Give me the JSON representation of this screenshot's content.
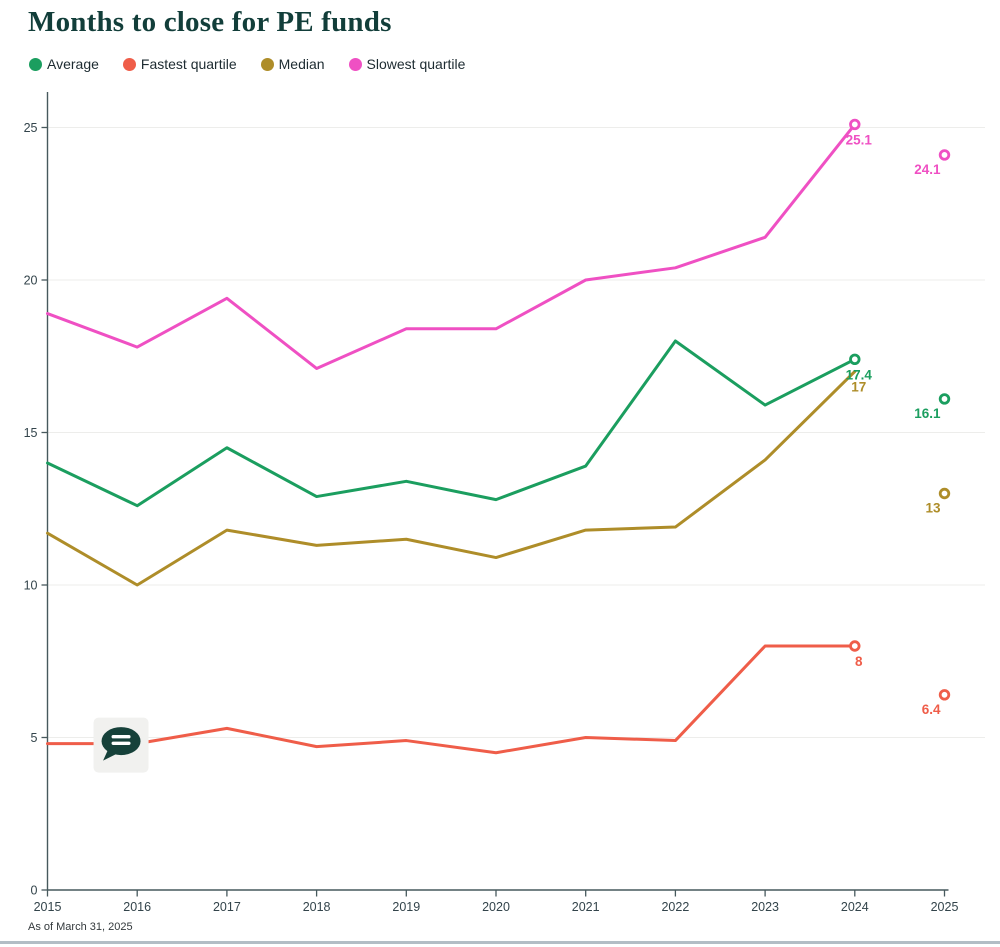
{
  "title": "Months to close for PE funds",
  "legend": [
    {
      "label": "Average",
      "color": "#1b9e5f"
    },
    {
      "label": "Fastest quartile",
      "color": "#ef5d49"
    },
    {
      "label": "Median",
      "color": "#ae8d29"
    },
    {
      "label": "Slowest quartile",
      "color": "#ef50c3"
    }
  ],
  "footer": {
    "as_of": "As of March 31, 2025"
  },
  "chart_data": {
    "type": "line",
    "title": "Months to close for PE funds",
    "x": [
      2015,
      2016,
      2017,
      2018,
      2019,
      2020,
      2021,
      2022,
      2023,
      2024,
      2025
    ],
    "xlabel": "",
    "ylabel": "",
    "ylim": [
      0,
      26
    ],
    "yticks": [
      0,
      5,
      10,
      15,
      20,
      25
    ],
    "grid": "horizontal",
    "legend_position": "top-left",
    "series": [
      {
        "name": "Average",
        "color": "#1b9e5f",
        "values": [
          14.0,
          12.6,
          14.5,
          12.9,
          13.4,
          12.8,
          13.9,
          18.0,
          15.9,
          17.4,
          16.1
        ],
        "end_labels": [
          "17.4",
          "16.1"
        ]
      },
      {
        "name": "Fastest quartile",
        "color": "#ef5d49",
        "values": [
          4.8,
          4.8,
          5.3,
          4.7,
          4.9,
          4.5,
          5.0,
          4.9,
          8.0,
          8.0,
          6.4
        ],
        "end_labels": [
          "8",
          "6.4"
        ]
      },
      {
        "name": "Median",
        "color": "#ae8d29",
        "values": [
          11.7,
          10.0,
          11.8,
          11.3,
          11.5,
          10.9,
          11.8,
          11.9,
          14.1,
          17.0,
          13.0
        ],
        "end_labels": [
          "17",
          "13"
        ]
      },
      {
        "name": "Slowest quartile",
        "color": "#ef50c3",
        "values": [
          18.9,
          17.8,
          19.4,
          17.1,
          18.4,
          18.4,
          20.0,
          20.4,
          21.4,
          25.1,
          24.1
        ],
        "end_labels": [
          "25.1",
          "24.1"
        ]
      }
    ],
    "annotation": {
      "icon": "speech-bubble-icon",
      "x_year": 2015.82,
      "y_value": 4.8
    }
  }
}
